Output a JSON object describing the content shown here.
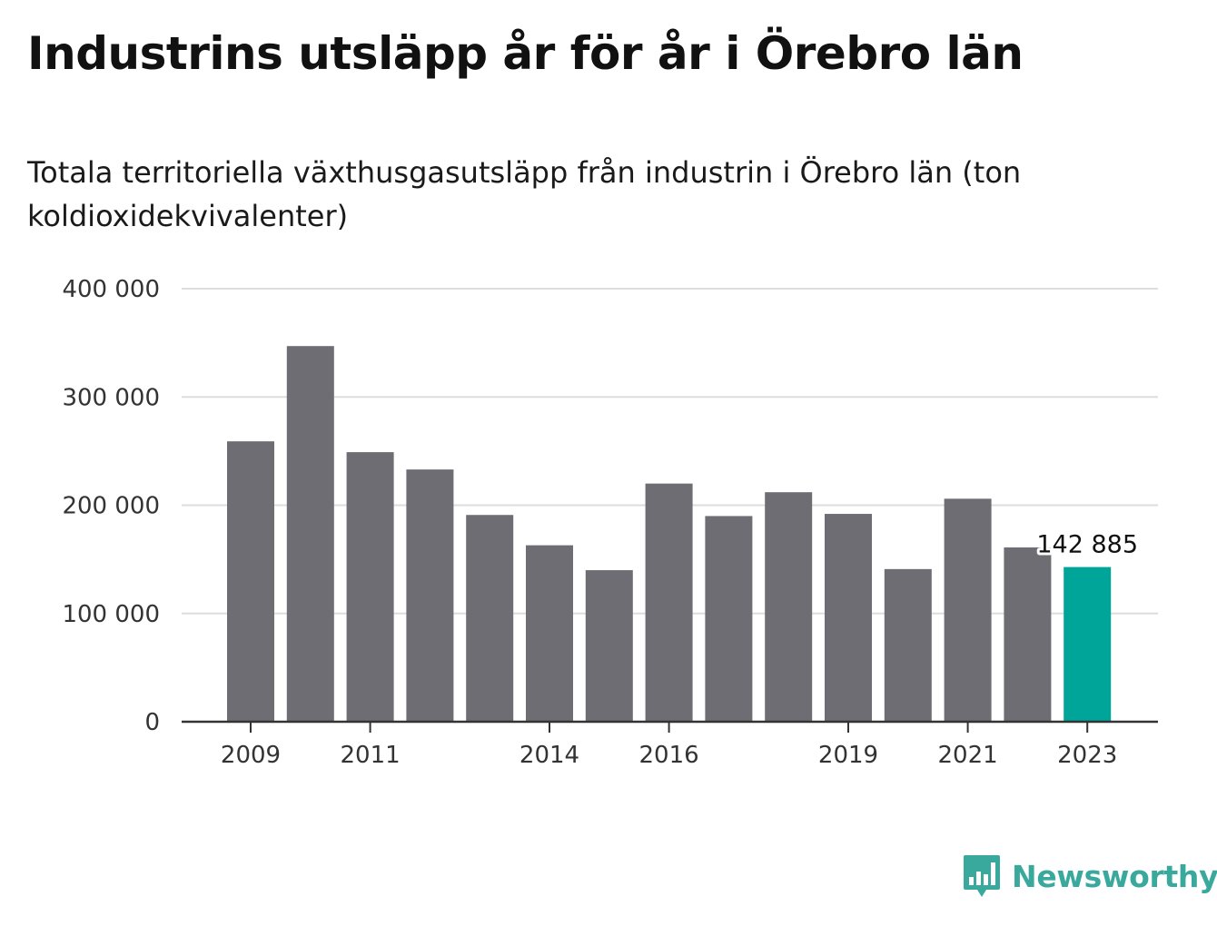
{
  "header": {
    "title": "Industrins utsläpp år för år i Örebro län",
    "subtitle": "Totala territoriella växthusgasutsläpp från industrin i Örebro län (ton koldioxidekvivalenter)"
  },
  "branding": {
    "name": "Newsworthy",
    "logo_icon": "bar-chart-speech-bubble-icon",
    "color": "#39a99d"
  },
  "chart_data": {
    "type": "bar",
    "categories": [
      "2009",
      "2010",
      "2011",
      "2012",
      "2013",
      "2014",
      "2015",
      "2016",
      "2017",
      "2018",
      "2019",
      "2020",
      "2021",
      "2022",
      "2023"
    ],
    "values": [
      259000,
      347000,
      249000,
      233000,
      191000,
      163000,
      140000,
      220000,
      190000,
      212000,
      192000,
      141000,
      206000,
      161000,
      142885
    ],
    "x_tick_labels": [
      "2009",
      "2011",
      "2014",
      "2016",
      "2019",
      "2021",
      "2023"
    ],
    "y_ticks": [
      0,
      100000,
      200000,
      300000,
      400000
    ],
    "y_tick_labels": [
      "0",
      "100 000",
      "200 000",
      "300 000",
      "400 000"
    ],
    "ylim": [
      0,
      400000
    ],
    "highlight_index": 14,
    "highlight_label": "142 885",
    "colors": {
      "bar": "#6e6d73",
      "highlight": "#00a59a",
      "grid": "#dddddd",
      "axis": "#333333"
    },
    "grid": true
  }
}
